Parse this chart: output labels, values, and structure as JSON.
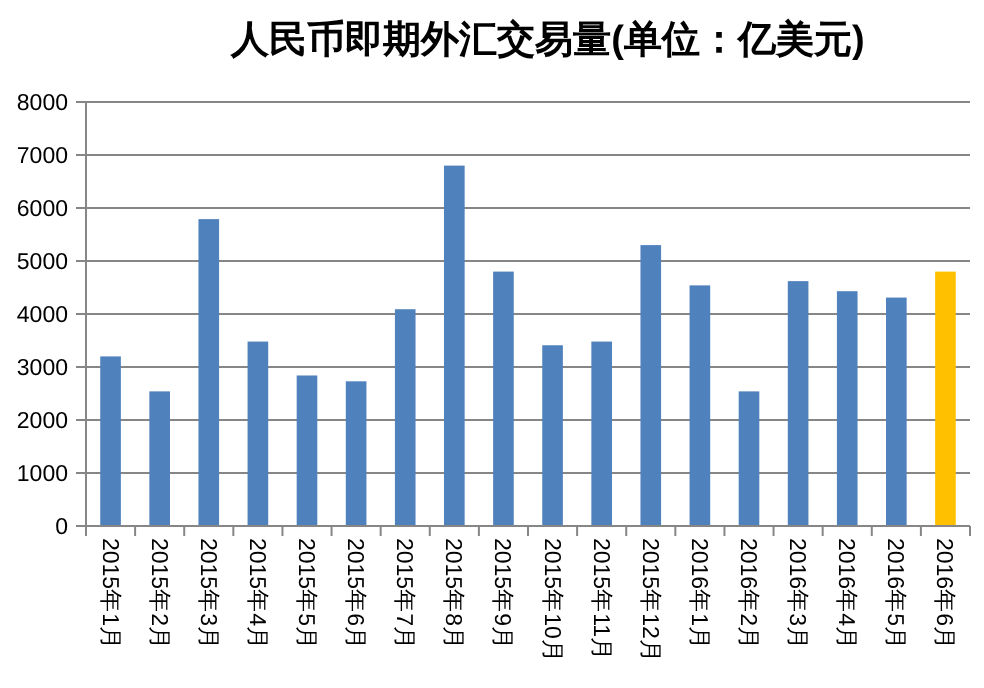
{
  "chart_data": {
    "type": "bar",
    "title": "人民币即期外汇交易量(单位：亿美元)",
    "categories": [
      "2015年1月",
      "2015年2月",
      "2015年3月",
      "2015年4月",
      "2015年5月",
      "2015年6月",
      "2015年7月",
      "2015年8月",
      "2015年9月",
      "2015年10月",
      "2015年11月",
      "2015年12月",
      "2016年1月",
      "2016年2月",
      "2016年3月",
      "2016年4月",
      "2016年5月",
      "2016年6月"
    ],
    "values": [
      3200,
      2540,
      5790,
      3480,
      2840,
      2730,
      4090,
      6800,
      4800,
      3410,
      3480,
      5300,
      4540,
      2540,
      4620,
      4430,
      4310,
      4800
    ],
    "colors": [
      "#4f81bd",
      "#4f81bd",
      "#4f81bd",
      "#4f81bd",
      "#4f81bd",
      "#4f81bd",
      "#4f81bd",
      "#4f81bd",
      "#4f81bd",
      "#4f81bd",
      "#4f81bd",
      "#4f81bd",
      "#4f81bd",
      "#4f81bd",
      "#4f81bd",
      "#4f81bd",
      "#4f81bd",
      "#ffc000"
    ],
    "ylim": [
      0,
      8000
    ],
    "yticks": [
      0,
      1000,
      2000,
      3000,
      4000,
      5000,
      6000,
      7000,
      8000
    ],
    "grid": "y"
  }
}
